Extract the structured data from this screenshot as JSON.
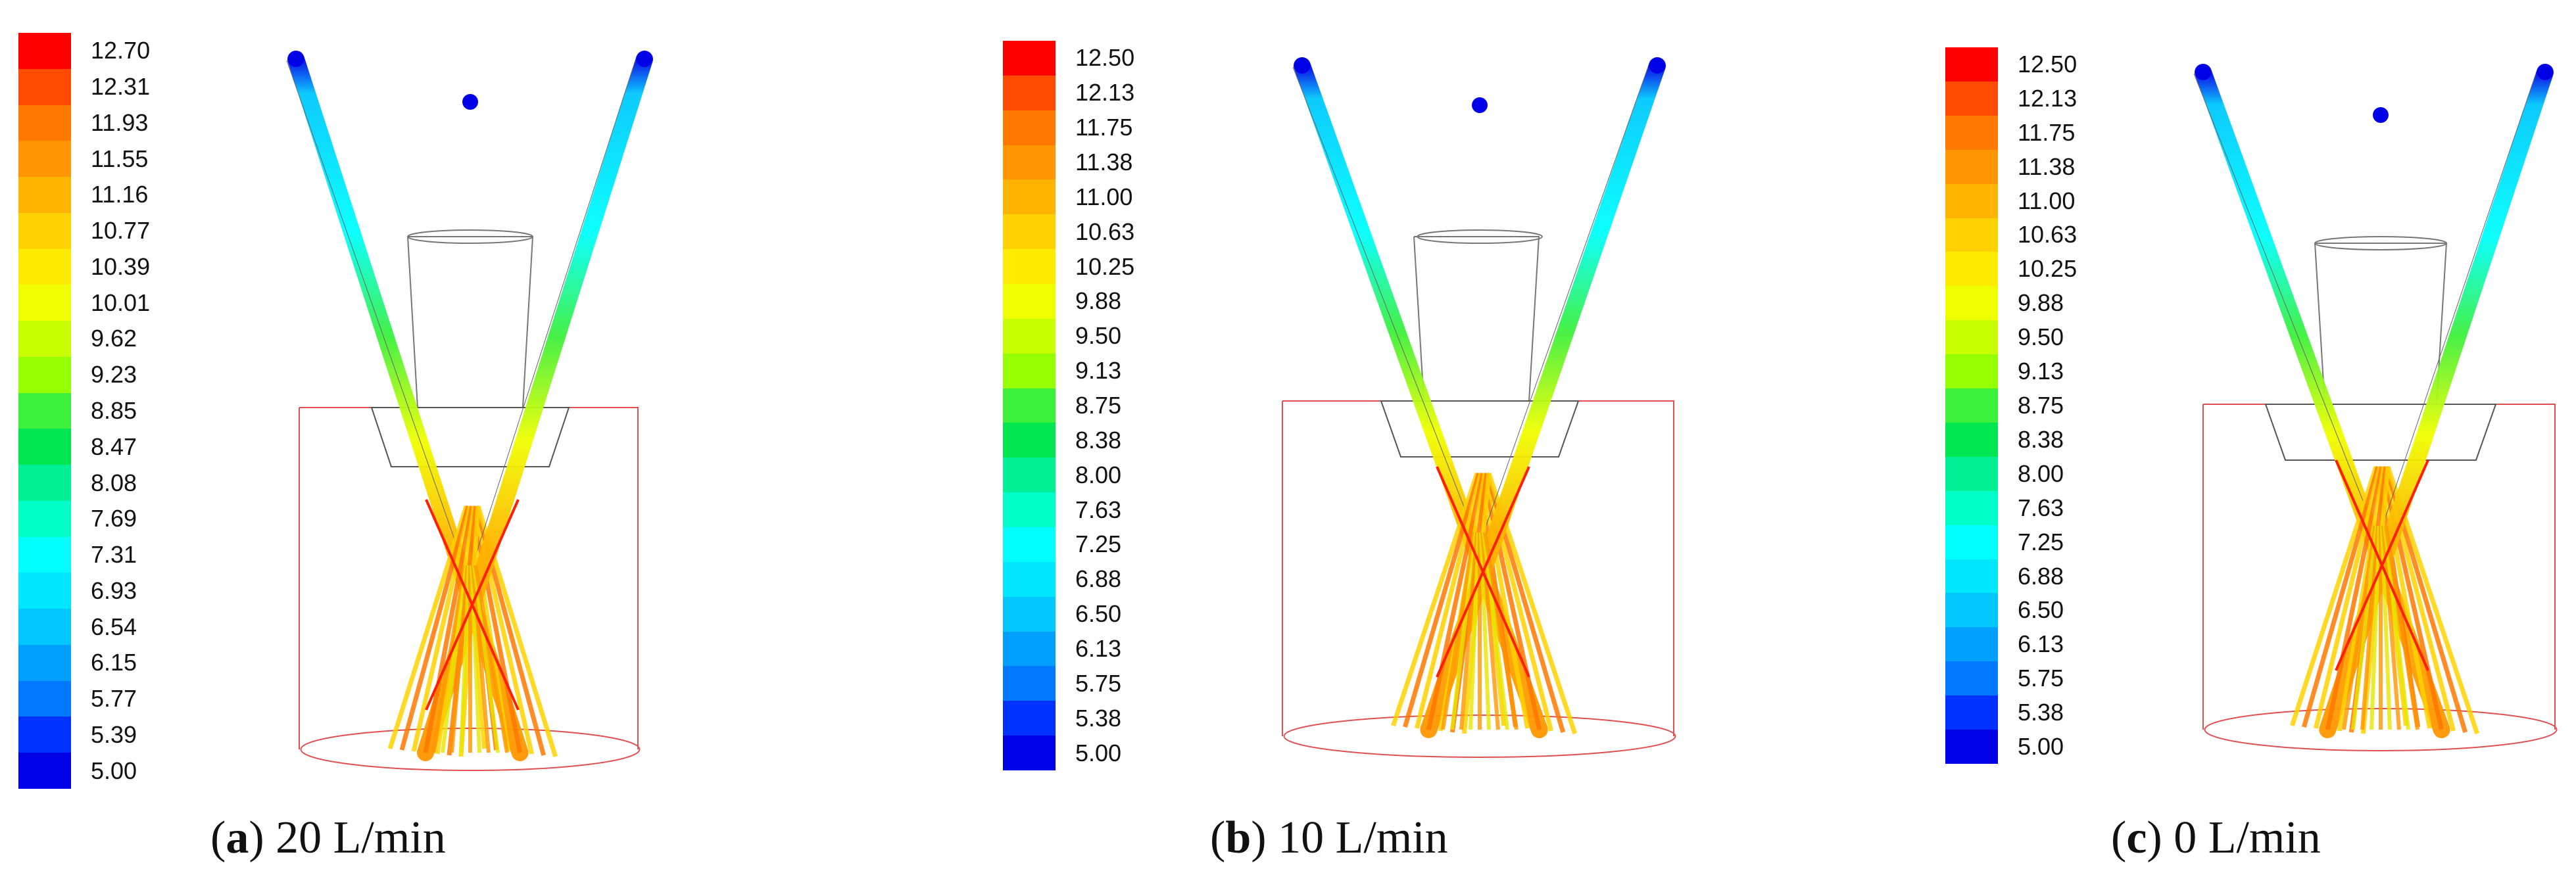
{
  "panels": [
    {
      "id": "a",
      "caption_letter": "a",
      "caption_text": " 20 L/min",
      "legend_ticks": [
        "12.70",
        "12.31",
        "11.93",
        "11.55",
        "11.16",
        "10.77",
        "10.39",
        "10.01",
        "9.62",
        "9.23",
        "8.85",
        "8.47",
        "8.08",
        "7.69",
        "7.31",
        "6.93",
        "6.54",
        "6.15",
        "5.77",
        "5.39",
        "5.00"
      ],
      "legend_min": 5.0,
      "legend_max": 12.7
    },
    {
      "id": "b",
      "caption_letter": "b",
      "caption_text": " 10 L/min",
      "legend_ticks": [
        "12.50",
        "12.13",
        "11.75",
        "11.38",
        "11.00",
        "10.63",
        "10.25",
        "9.88",
        "9.50",
        "9.13",
        "8.75",
        "8.38",
        "8.00",
        "7.63",
        "7.25",
        "6.88",
        "6.50",
        "6.13",
        "5.75",
        "5.38",
        "5.00"
      ],
      "legend_min": 5.0,
      "legend_max": 12.5
    },
    {
      "id": "c",
      "caption_letter": "c",
      "caption_text": " 0 L/min",
      "legend_ticks": [
        "12.50",
        "12.13",
        "11.75",
        "11.38",
        "11.00",
        "10.63",
        "10.25",
        "9.88",
        "9.50",
        "9.13",
        "8.75",
        "8.38",
        "8.00",
        "7.63",
        "7.25",
        "6.88",
        "6.50",
        "6.13",
        "5.75",
        "5.38",
        "5.00"
      ],
      "legend_min": 5.0,
      "legend_max": 12.5
    }
  ],
  "legend_colors": [
    "#ff0000",
    "#ff4b00",
    "#ff7800",
    "#ff9600",
    "#ffb400",
    "#ffd200",
    "#ffeb00",
    "#f0ff00",
    "#c8ff00",
    "#96ff00",
    "#3cf03c",
    "#00e650",
    "#00f096",
    "#00ffc8",
    "#00ffff",
    "#00e6ff",
    "#00c8ff",
    "#00a0ff",
    "#0078ff",
    "#0032ff",
    "#0000e6"
  ]
}
